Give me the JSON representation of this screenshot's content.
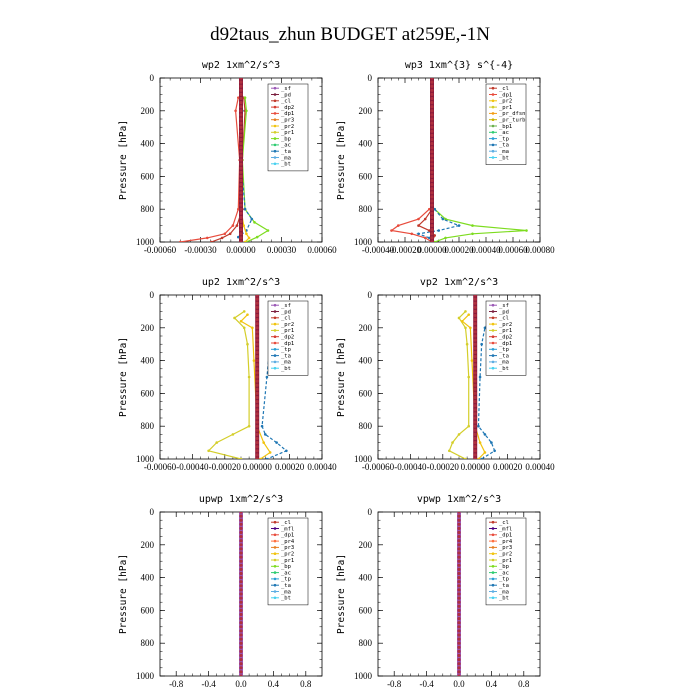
{
  "figure": {
    "title": "d92taus_zhun  BUDGET at259E,-1N"
  },
  "colors": {
    "sf": "#9b59b6",
    "pd": "#7b1f3f",
    "cl": "#c0392b",
    "dp2": "#d63b2f",
    "dp1": "#e84c3d",
    "pr3": "#e67e22",
    "pr2": "#f1c40f",
    "pr1": "#d4ce2a",
    "bp": "#7ddc1f",
    "ac": "#2ecc71",
    "ta": "#1f77b4",
    "tp": "#2a9fd6",
    "ma": "#5dade2",
    "bt": "#48d1f0",
    "mfl": "#4b0082",
    "pr4": "#ff6f3f",
    "pr_dfsn": "#f39c12",
    "pr_turb": "#c9b300",
    "bp1": "#6ab04c",
    "main": "#8b1a3a"
  },
  "chart_data": [
    {
      "type": "line",
      "title": "wp2   1xm^2/s^3",
      "ylabel": "Pressure  [hPa]",
      "xlim": [
        -0.0006,
        0.0006
      ],
      "ylim": [
        1000,
        0
      ],
      "xticks": [
        "-0.00060",
        "-0.00030",
        "0.00000",
        "0.00030",
        "0.00060"
      ],
      "xtick_values": [
        -0.0006,
        -0.0003,
        0,
        0.0003,
        0.0006
      ],
      "yticks": [
        "0",
        "200",
        "400",
        "600",
        "800",
        "1000"
      ],
      "ytick_values": [
        0,
        200,
        400,
        600,
        800,
        1000
      ],
      "legend": [
        "_sf",
        "_pd",
        "_cl",
        "_dp2",
        "_dp1",
        "_pr3",
        "_pr2",
        "_pr1",
        "_bp",
        "_ac",
        "_ta",
        "_ma",
        "_bt"
      ],
      "legend_keys": [
        "sf",
        "pd",
        "cl",
        "dp2",
        "dp1",
        "pr3",
        "pr2",
        "pr1",
        "bp",
        "ac",
        "ta",
        "ma",
        "bt"
      ],
      "legend_position": "upper-right",
      "series": [
        {
          "key": "dp1",
          "y": [
            120,
            200,
            500,
            800,
            900,
            950,
            975,
            1000
          ],
          "x": [
            -2e-05,
            -4e-05,
            -1e-05,
            -2e-05,
            -6e-05,
            -0.00012,
            -0.00025,
            -0.00045
          ]
        },
        {
          "key": "cl",
          "y": [
            120,
            200,
            500,
            800,
            900,
            950,
            975,
            1000
          ],
          "x": [
            2e-05,
            3e-05,
            1e-05,
            1e-05,
            -3e-05,
            -8e-05,
            -0.00014,
            -0.00022
          ]
        },
        {
          "key": "bp",
          "y": [
            120,
            200,
            500,
            800,
            880,
            930,
            970,
            1000
          ],
          "x": [
            3e-05,
            4e-05,
            1e-05,
            3e-05,
            0.0001,
            0.0002,
            0.00012,
            4e-05
          ]
        },
        {
          "key": "ta",
          "y": [
            120,
            200,
            500,
            800,
            860,
            930,
            970,
            1000
          ],
          "x": [
            0.0,
            1e-05,
            0.0,
            3e-05,
            8e-05,
            4e-05,
            -2e-05,
            0.0
          ]
        },
        {
          "key": "pr2",
          "y": [
            120,
            200,
            500,
            800,
            900,
            950,
            975,
            1000
          ],
          "x": [
            0.0,
            0.0,
            0.0,
            0.0,
            2e-05,
            4e-05,
            6e-05,
            3e-05
          ]
        },
        {
          "key": "main",
          "y": [
            0,
            1000
          ],
          "x": [
            0,
            0
          ]
        }
      ]
    },
    {
      "type": "line",
      "title": "wp3   1xm^{3} s^{-4}",
      "ylabel": "Pressure  [hPa]",
      "xlim": [
        -0.0004,
        0.0008
      ],
      "ylim": [
        1000,
        0
      ],
      "xticks": [
        "-0.00040",
        "-0.00020",
        "0.00000",
        "0.00020",
        "0.00040",
        "0.00060",
        "0.00080"
      ],
      "xtick_values": [
        -0.0004,
        -0.0002,
        0,
        0.0002,
        0.0004,
        0.0006,
        0.0008
      ],
      "yticks": [
        "0",
        "200",
        "400",
        "600",
        "800",
        "1000"
      ],
      "ytick_values": [
        0,
        200,
        400,
        600,
        800,
        1000
      ],
      "legend": [
        "_cl",
        "_dp1",
        "_pr2",
        "_pr1",
        "_pr_dfsn",
        "_pr_turb",
        "_bp1",
        "_ac",
        "_tp",
        "_ta",
        "_ma",
        "_bt"
      ],
      "legend_keys": [
        "cl",
        "dp1",
        "pr2",
        "pr1",
        "pr_dfsn",
        "pr_turb",
        "bp1",
        "ac",
        "tp",
        "ta",
        "ma",
        "bt"
      ],
      "legend_position": "upper-right",
      "series": [
        {
          "key": "bp",
          "y": [
            800,
            860,
            900,
            930,
            950,
            975,
            1000
          ],
          "x": [
            2e-05,
            0.0001,
            0.0003,
            0.0007,
            0.0003,
            0.0001,
            2e-05
          ]
        },
        {
          "key": "dp1",
          "y": [
            800,
            860,
            900,
            930,
            950,
            975,
            1000
          ],
          "x": [
            -2e-05,
            -0.0001,
            -0.00025,
            -0.0003,
            -0.00015,
            -5e-05,
            0.0
          ]
        },
        {
          "key": "ta",
          "y": [
            800,
            860,
            900,
            930,
            950,
            975,
            1000
          ],
          "x": [
            2e-05,
            8e-05,
            0.0002,
            5e-05,
            -0.0001,
            -2e-05,
            0.0
          ]
        },
        {
          "key": "cl",
          "y": [
            800,
            860,
            900,
            930,
            960,
            1000
          ],
          "x": [
            0.0,
            -5e-05,
            -0.0001,
            -2e-05,
            2e-05,
            0.0
          ]
        },
        {
          "key": "main",
          "y": [
            0,
            1000
          ],
          "x": [
            0,
            0
          ]
        }
      ]
    },
    {
      "type": "line",
      "title": "up2   1xm^2/s^3",
      "ylabel": "Pressure  [hPa]",
      "xlim": [
        -0.0006,
        0.0004
      ],
      "ylim": [
        1000,
        0
      ],
      "xticks": [
        "-0.00060",
        "-0.00040",
        "-0.00020",
        "0.00000",
        "0.00020",
        "0.00040"
      ],
      "xtick_values": [
        -0.0006,
        -0.0004,
        -0.0002,
        0,
        0.0002,
        0.0004
      ],
      "yticks": [
        "0",
        "200",
        "400",
        "600",
        "800",
        "1000"
      ],
      "ytick_values": [
        0,
        200,
        400,
        600,
        800,
        1000
      ],
      "legend": [
        "_sf",
        "_pd",
        "_cl",
        "_pr2",
        "_pr1",
        "_dp2",
        "_dp1",
        "_tp",
        "_ta",
        "_ma",
        "_bt"
      ],
      "legend_keys": [
        "sf",
        "pd",
        "cl",
        "pr2",
        "pr1",
        "dp2",
        "dp1",
        "tp",
        "ta",
        "ma",
        "bt"
      ],
      "legend_position": "upper-right",
      "series": [
        {
          "key": "ta",
          "y": [
            100,
            150,
            200,
            300,
            500,
            800,
            850,
            900,
            950,
            1000
          ],
          "x": [
            0.00012,
            0.00015,
            0.0001,
            8e-05,
            6e-05,
            3e-05,
            5e-05,
            0.00012,
            0.00018,
            6e-05
          ]
        },
        {
          "key": "pr1",
          "y": [
            100,
            140,
            200,
            300,
            500,
            800,
            850,
            900,
            950,
            1000
          ],
          "x": [
            -8e-05,
            -0.00014,
            -8e-05,
            -6e-05,
            -5e-05,
            -5e-05,
            -0.00015,
            -0.00025,
            -0.0003,
            -0.0001
          ]
        },
        {
          "key": "pr2",
          "y": [
            120,
            160,
            200,
            400,
            800,
            900,
            960,
            1000
          ],
          "x": [
            -6e-05,
            -0.0001,
            -3e-05,
            -2e-05,
            0.0,
            4e-05,
            8e-05,
            2e-05
          ]
        },
        {
          "key": "main",
          "y": [
            0,
            1000
          ],
          "x": [
            0,
            0
          ]
        }
      ]
    },
    {
      "type": "line",
      "title": "vp2   1xm^2/s^3",
      "ylabel": "Pressure  [hPa]",
      "xlim": [
        -0.0006,
        0.0004
      ],
      "ylim": [
        1000,
        0
      ],
      "xticks": [
        "-0.00060",
        "-0.00040",
        "-0.00020",
        "0.00000",
        "0.00020",
        "0.00040"
      ],
      "xtick_values": [
        -0.0006,
        -0.0004,
        -0.0002,
        0,
        0.0002,
        0.0004
      ],
      "yticks": [
        "0",
        "200",
        "400",
        "600",
        "800",
        "1000"
      ],
      "ytick_values": [
        0,
        200,
        400,
        600,
        800,
        1000
      ],
      "legend": [
        "_sf",
        "_pd",
        "_cl",
        "_pr2",
        "_pr1",
        "_dp2",
        "_dp1",
        "_tp",
        "_ta",
        "_ma",
        "_bt"
      ],
      "legend_keys": [
        "sf",
        "pd",
        "cl",
        "pr2",
        "pr1",
        "dp2",
        "dp1",
        "tp",
        "ta",
        "ma",
        "bt"
      ],
      "legend_position": "upper-right",
      "series": [
        {
          "key": "ta",
          "y": [
            100,
            150,
            200,
            300,
            500,
            800,
            850,
            900,
            950,
            1000
          ],
          "x": [
            8e-05,
            0.0001,
            6e-05,
            4e-05,
            3e-05,
            2e-05,
            6e-05,
            0.0001,
            0.00012,
            4e-05
          ]
        },
        {
          "key": "pr1",
          "y": [
            100,
            140,
            200,
            300,
            500,
            800,
            850,
            900,
            950,
            1000
          ],
          "x": [
            -6e-05,
            -0.0001,
            -6e-05,
            -5e-05,
            -4e-05,
            -4e-05,
            -0.0001,
            -0.00014,
            -0.00016,
            -6e-05
          ]
        },
        {
          "key": "pr2",
          "y": [
            120,
            160,
            200,
            400,
            800,
            900,
            960,
            1000
          ],
          "x": [
            -4e-05,
            -8e-05,
            -3e-05,
            -2e-05,
            0.0,
            3e-05,
            6e-05,
            2e-05
          ]
        },
        {
          "key": "main",
          "y": [
            0,
            1000
          ],
          "x": [
            0,
            0
          ]
        }
      ]
    },
    {
      "type": "line",
      "title": "upwp   1xm^2/s^3",
      "ylabel": "Pressure  [hPa]",
      "xlim": [
        -1.0,
        1.0
      ],
      "ylim": [
        1000,
        0
      ],
      "xticks": [
        "-0.8",
        "-0.4",
        "0.0",
        "0.4",
        "0.8"
      ],
      "xtick_values": [
        -0.8,
        -0.4,
        0,
        0.4,
        0.8
      ],
      "yticks": [
        "0",
        "200",
        "400",
        "600",
        "800",
        "1000"
      ],
      "ytick_values": [
        0,
        200,
        400,
        600,
        800,
        1000
      ],
      "legend": [
        "_cl",
        "_mfl",
        "_dp1",
        "_pr4",
        "_pr3",
        "_pr2",
        "_pr1",
        "_bp",
        "_ac",
        "_tp",
        "_ta",
        "_ma",
        "_bt"
      ],
      "legend_keys": [
        "cl",
        "mfl",
        "dp1",
        "pr4",
        "pr3",
        "pr2",
        "pr1",
        "bp",
        "ac",
        "tp",
        "ta",
        "ma",
        "bt"
      ],
      "legend_position": "upper-right",
      "series": [
        {
          "key": "sf",
          "y": [
            0,
            1000
          ],
          "x": [
            0,
            0
          ]
        }
      ]
    },
    {
      "type": "line",
      "title": "vpwp   1xm^2/s^3",
      "ylabel": "Pressure  [hPa]",
      "xlim": [
        -1.0,
        1.0
      ],
      "ylim": [
        1000,
        0
      ],
      "xticks": [
        "-0.8",
        "-0.4",
        "0.0",
        "0.4",
        "0.8"
      ],
      "xtick_values": [
        -0.8,
        -0.4,
        0,
        0.4,
        0.8
      ],
      "yticks": [
        "0",
        "200",
        "400",
        "600",
        "800",
        "1000"
      ],
      "ytick_values": [
        0,
        200,
        400,
        600,
        800,
        1000
      ],
      "legend": [
        "_cl",
        "_mfl",
        "_dp1",
        "_pr4",
        "_pr3",
        "_pr2",
        "_pr1",
        "_bp",
        "_ac",
        "_tp",
        "_ta",
        "_ma",
        "_bt"
      ],
      "legend_keys": [
        "cl",
        "mfl",
        "dp1",
        "pr4",
        "pr3",
        "pr2",
        "pr1",
        "bp",
        "ac",
        "tp",
        "ta",
        "ma",
        "bt"
      ],
      "legend_position": "upper-right",
      "series": [
        {
          "key": "sf",
          "y": [
            0,
            1000
          ],
          "x": [
            0,
            0
          ]
        }
      ]
    }
  ]
}
